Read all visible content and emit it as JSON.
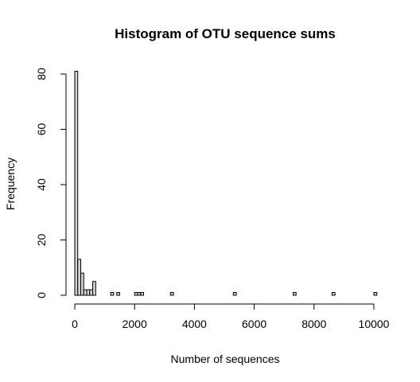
{
  "chart_data": {
    "type": "bar",
    "title": "Histogram of OTU sequence sums",
    "xlabel": "Number of sequences",
    "ylabel": "Frequency",
    "xlim": [
      0,
      10000
    ],
    "ylim": [
      0,
      80
    ],
    "bin_width": 100,
    "x_ticks": [
      "0",
      "2000",
      "4000",
      "6000",
      "8000",
      "10000"
    ],
    "y_ticks": [
      "0",
      "20",
      "40",
      "60",
      "80"
    ],
    "bins": [
      {
        "x0": 0,
        "x1": 100,
        "count": 81
      },
      {
        "x0": 100,
        "x1": 200,
        "count": 13
      },
      {
        "x0": 200,
        "x1": 300,
        "count": 8
      },
      {
        "x0": 300,
        "x1": 400,
        "count": 2
      },
      {
        "x0": 400,
        "x1": 500,
        "count": 2
      },
      {
        "x0": 500,
        "x1": 600,
        "count": 2
      },
      {
        "x0": 600,
        "x1": 700,
        "count": 5
      },
      {
        "x0": 1200,
        "x1": 1300,
        "count": 1
      },
      {
        "x0": 1400,
        "x1": 1500,
        "count": 1
      },
      {
        "x0": 2000,
        "x1": 2100,
        "count": 1
      },
      {
        "x0": 2100,
        "x1": 2200,
        "count": 1
      },
      {
        "x0": 2200,
        "x1": 2300,
        "count": 1
      },
      {
        "x0": 3200,
        "x1": 3300,
        "count": 1
      },
      {
        "x0": 5300,
        "x1": 5400,
        "count": 1
      },
      {
        "x0": 7300,
        "x1": 7400,
        "count": 1
      },
      {
        "x0": 8600,
        "x1": 8700,
        "count": 1
      },
      {
        "x0": 10000,
        "x1": 10100,
        "count": 1
      }
    ]
  }
}
